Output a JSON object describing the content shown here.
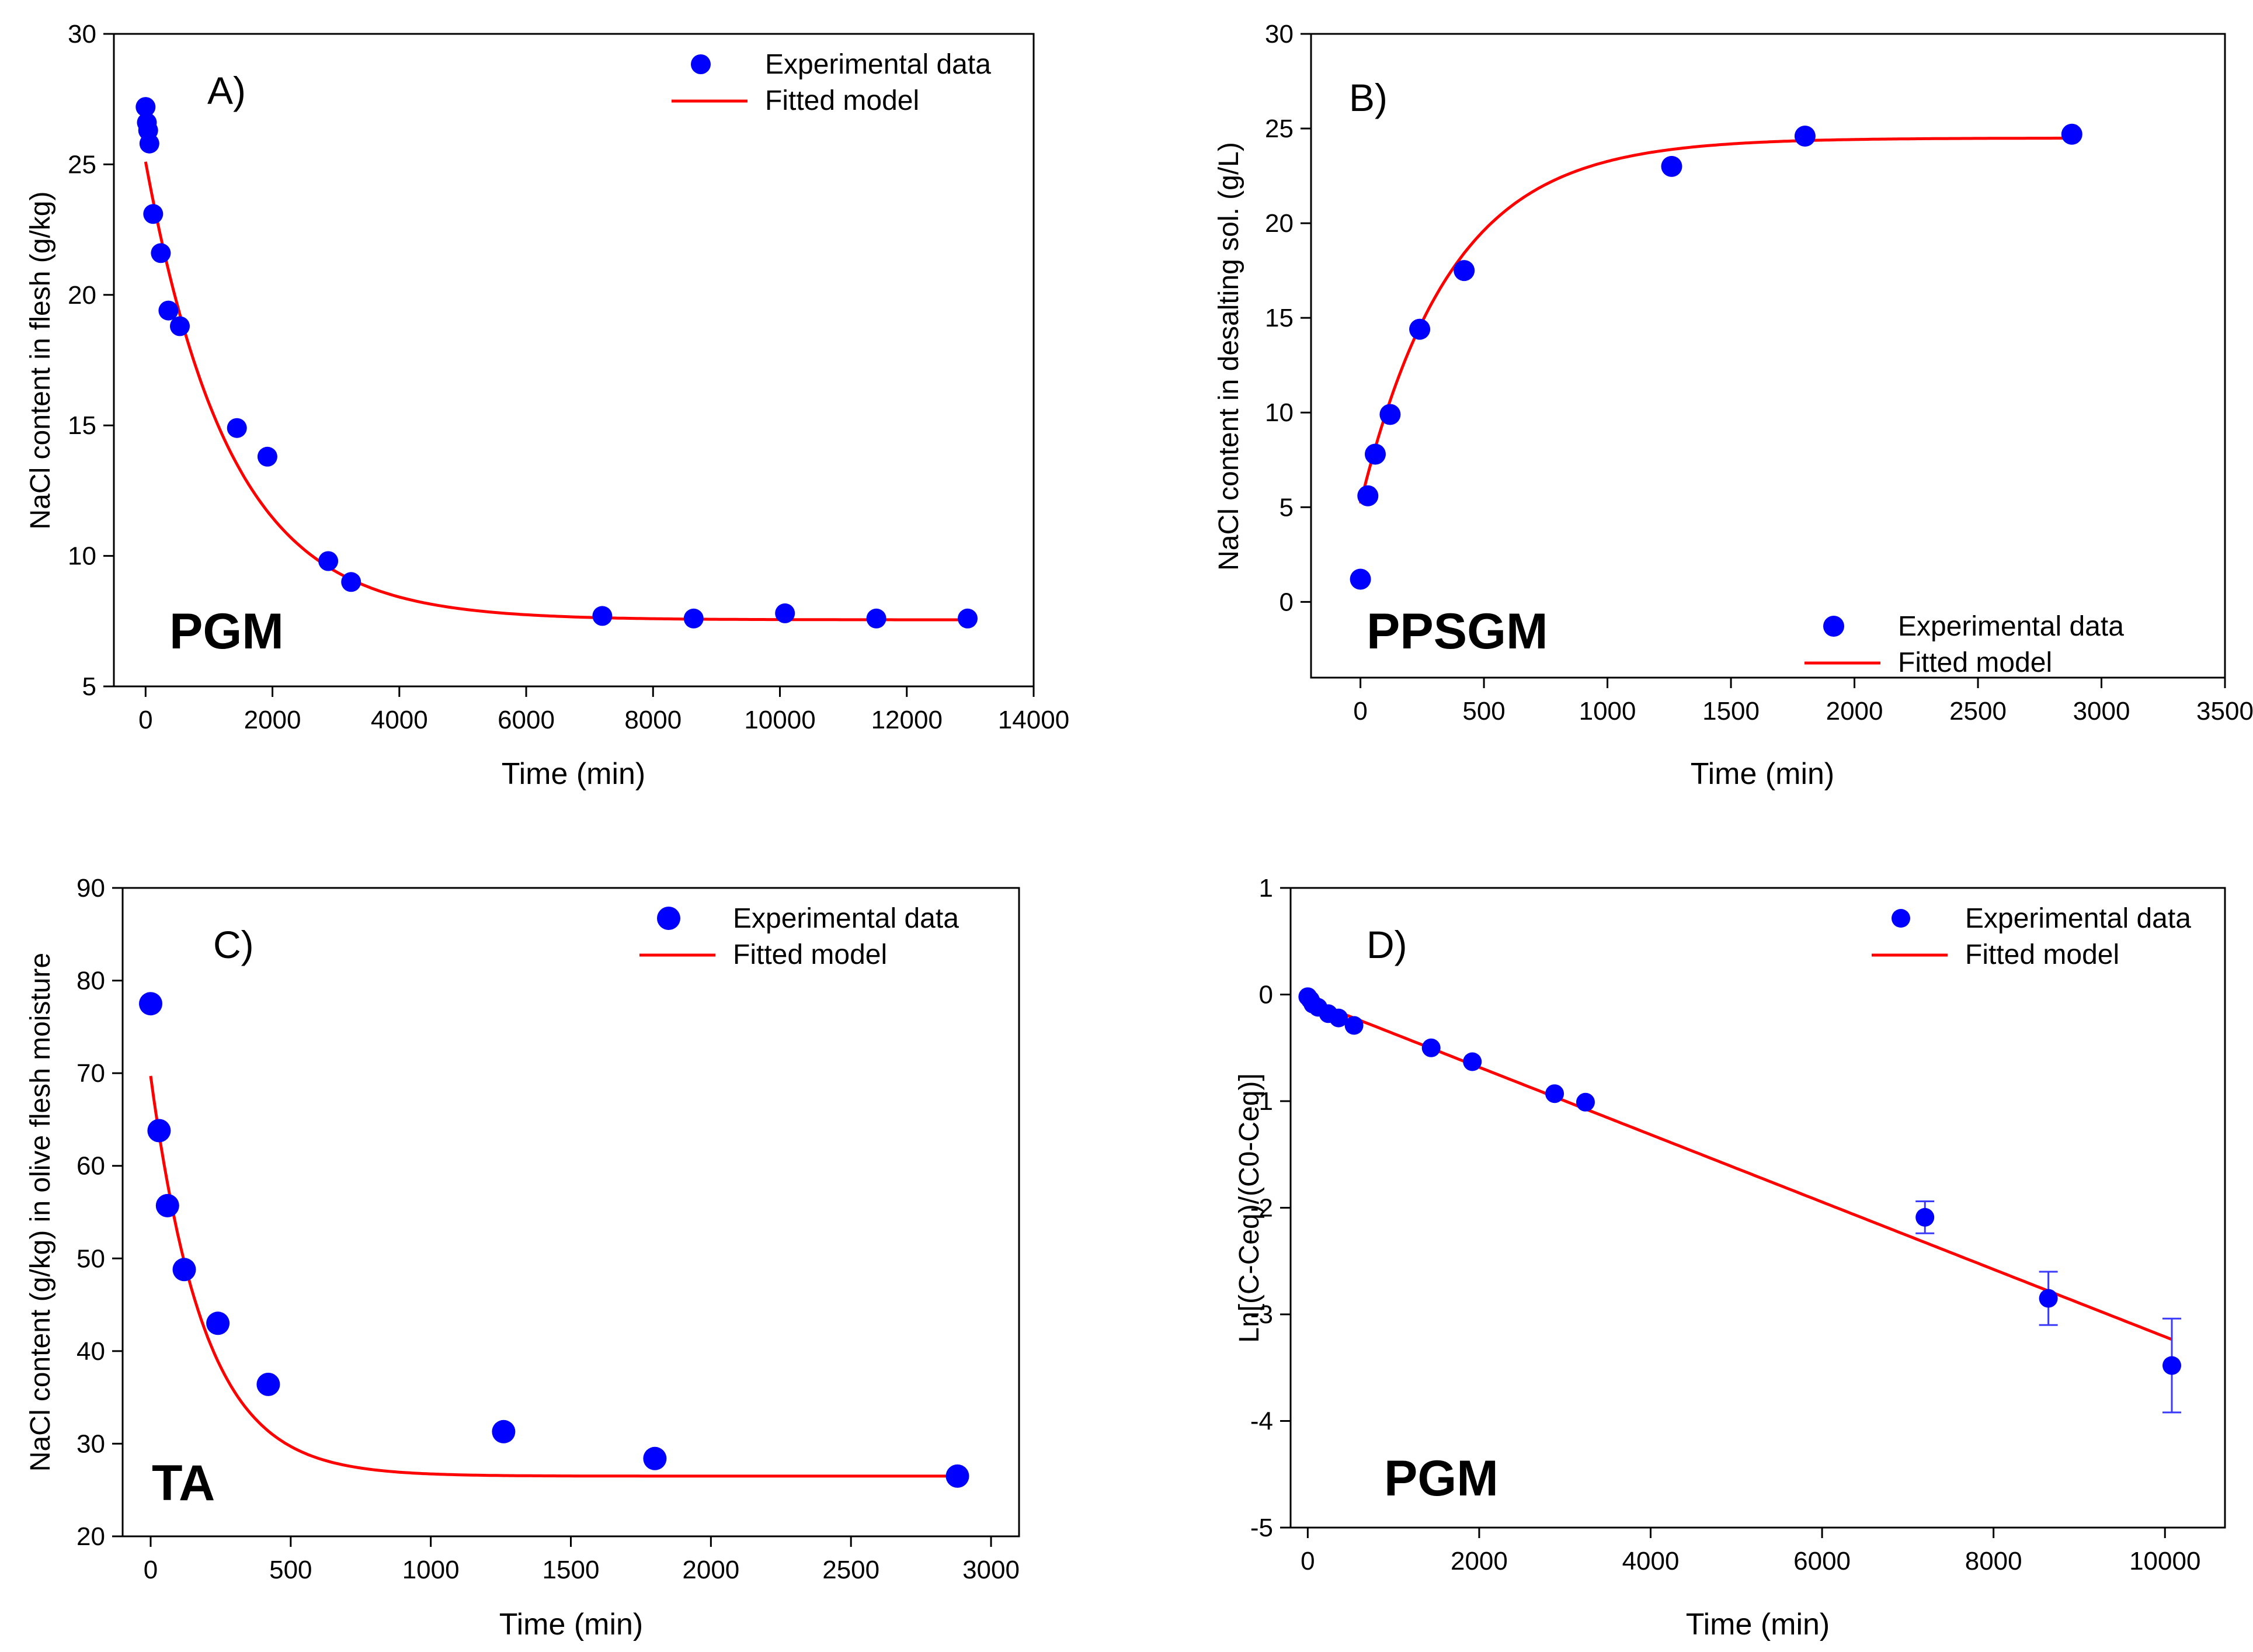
{
  "colors": {
    "points": "#0000ff",
    "fit": "#ff0000",
    "errorbar": "#3a3aff",
    "axis": "#000000"
  },
  "chart_data": [
    {
      "id": "A",
      "type": "scatter",
      "panel_label": "A)",
      "sample_label": "PGM",
      "xlabel": "Time (min)",
      "ylabel": "NaCl content in flesh (g/kg)",
      "xlim": [
        -500,
        14000
      ],
      "ylim": [
        5,
        30
      ],
      "xticks": [
        0,
        2000,
        4000,
        6000,
        8000,
        10000,
        12000,
        14000
      ],
      "yticks": [
        5,
        10,
        15,
        20,
        25,
        30
      ],
      "legend": {
        "position": "top-right",
        "points": "Experimental data",
        "line": "Fitted model"
      },
      "points": [
        {
          "x": 0,
          "y": 27.2
        },
        {
          "x": 20,
          "y": 26.6
        },
        {
          "x": 40,
          "y": 26.3
        },
        {
          "x": 60,
          "y": 25.8
        },
        {
          "x": 120,
          "y": 23.1
        },
        {
          "x": 240,
          "y": 21.6
        },
        {
          "x": 360,
          "y": 19.4
        },
        {
          "x": 540,
          "y": 18.8
        },
        {
          "x": 1440,
          "y": 14.9
        },
        {
          "x": 1920,
          "y": 13.8
        },
        {
          "x": 2880,
          "y": 9.8
        },
        {
          "x": 3240,
          "y": 9.0
        },
        {
          "x": 7200,
          "y": 7.7
        },
        {
          "x": 8640,
          "y": 7.6
        },
        {
          "x": 10080,
          "y": 7.8
        },
        {
          "x": 11520,
          "y": 7.6
        },
        {
          "x": 12960,
          "y": 7.6
        }
      ],
      "fit": {
        "model": "exponential",
        "ceq": 7.55,
        "c0": 25.1,
        "k": 0.00075,
        "xrange": [
          0,
          13000
        ]
      }
    },
    {
      "id": "B",
      "type": "scatter",
      "panel_label": "B)",
      "sample_label": "PPSGM",
      "xlabel": "Time (min)",
      "ylabel": "NaCl content in desalting sol. (g/L)",
      "xlim": [
        -200,
        3500
      ],
      "ylim": [
        -4,
        30
      ],
      "xticks": [
        0,
        500,
        1000,
        1500,
        2000,
        2500,
        3000,
        3500
      ],
      "yticks": [
        0,
        5,
        10,
        15,
        20,
        25,
        30
      ],
      "legend": {
        "position": "bottom-right",
        "points": "Experimental data",
        "line": "Fitted model"
      },
      "points": [
        {
          "x": 0,
          "y": 1.2
        },
        {
          "x": 30,
          "y": 5.6
        },
        {
          "x": 60,
          "y": 7.8
        },
        {
          "x": 120,
          "y": 9.9
        },
        {
          "x": 240,
          "y": 14.4
        },
        {
          "x": 420,
          "y": 17.5
        },
        {
          "x": 1260,
          "y": 23.0
        },
        {
          "x": 1800,
          "y": 24.6
        },
        {
          "x": 2880,
          "y": 24.7
        }
      ],
      "fit": {
        "model": "exponential",
        "ceq": 24.5,
        "c0": 5.2,
        "k": 0.00275,
        "xrange": [
          0,
          2880
        ]
      }
    },
    {
      "id": "C",
      "type": "scatter",
      "panel_label": "C)",
      "sample_label": "TA",
      "xlabel": "Time (min)",
      "ylabel": "NaCl content (g/kg) in olive flesh moisture",
      "xlim": [
        -100,
        3100
      ],
      "ylim": [
        20,
        90
      ],
      "xticks": [
        0,
        500,
        1000,
        1500,
        2000,
        2500,
        3000
      ],
      "yticks": [
        20,
        30,
        40,
        50,
        60,
        70,
        80,
        90
      ],
      "legend": {
        "position": "top-right",
        "points": "Experimental data",
        "line": "Fitted model"
      },
      "points": [
        {
          "x": 0,
          "y": 77.5
        },
        {
          "x": 30,
          "y": 63.8
        },
        {
          "x": 60,
          "y": 55.7
        },
        {
          "x": 120,
          "y": 48.8
        },
        {
          "x": 240,
          "y": 43.0
        },
        {
          "x": 420,
          "y": 36.4
        },
        {
          "x": 1260,
          "y": 31.3
        },
        {
          "x": 1800,
          "y": 28.4
        },
        {
          "x": 2880,
          "y": 26.5
        }
      ],
      "fit": {
        "model": "exponential",
        "ceq": 26.5,
        "c0": 69.7,
        "k": 0.0052,
        "xrange": [
          0,
          2880
        ]
      }
    },
    {
      "id": "D",
      "type": "scatter",
      "panel_label": "D)",
      "sample_label": "PGM",
      "xlabel": "Time (min)",
      "ylabel": "Ln[(C-Ceq)/(C0-Ceq)]",
      "xlim": [
        -200,
        10700
      ],
      "ylim": [
        -5,
        1
      ],
      "xticks": [
        0,
        2000,
        4000,
        6000,
        8000,
        10000
      ],
      "yticks": [
        -5,
        -4,
        -3,
        -2,
        -1,
        0,
        1
      ],
      "legend": {
        "position": "top-right",
        "points": "Experimental data",
        "line": "Fitted model"
      },
      "points": [
        {
          "x": 0,
          "y": -0.02
        },
        {
          "x": 30,
          "y": -0.05
        },
        {
          "x": 60,
          "y": -0.09
        },
        {
          "x": 120,
          "y": -0.12
        },
        {
          "x": 240,
          "y": -0.18
        },
        {
          "x": 360,
          "y": -0.22
        },
        {
          "x": 540,
          "y": -0.29
        },
        {
          "x": 1440,
          "y": -0.5
        },
        {
          "x": 1920,
          "y": -0.63
        },
        {
          "x": 2880,
          "y": -0.93
        },
        {
          "x": 3240,
          "y": -1.01
        },
        {
          "x": 7200,
          "y": -2.09,
          "err": 0.15
        },
        {
          "x": 8640,
          "y": -2.85,
          "err": 0.25
        },
        {
          "x": 10080,
          "y": -3.48,
          "err": 0.44
        }
      ],
      "fit": {
        "model": "linear",
        "slope": -0.000316,
        "intercept": -0.05,
        "xrange": [
          0,
          10080
        ]
      }
    }
  ]
}
